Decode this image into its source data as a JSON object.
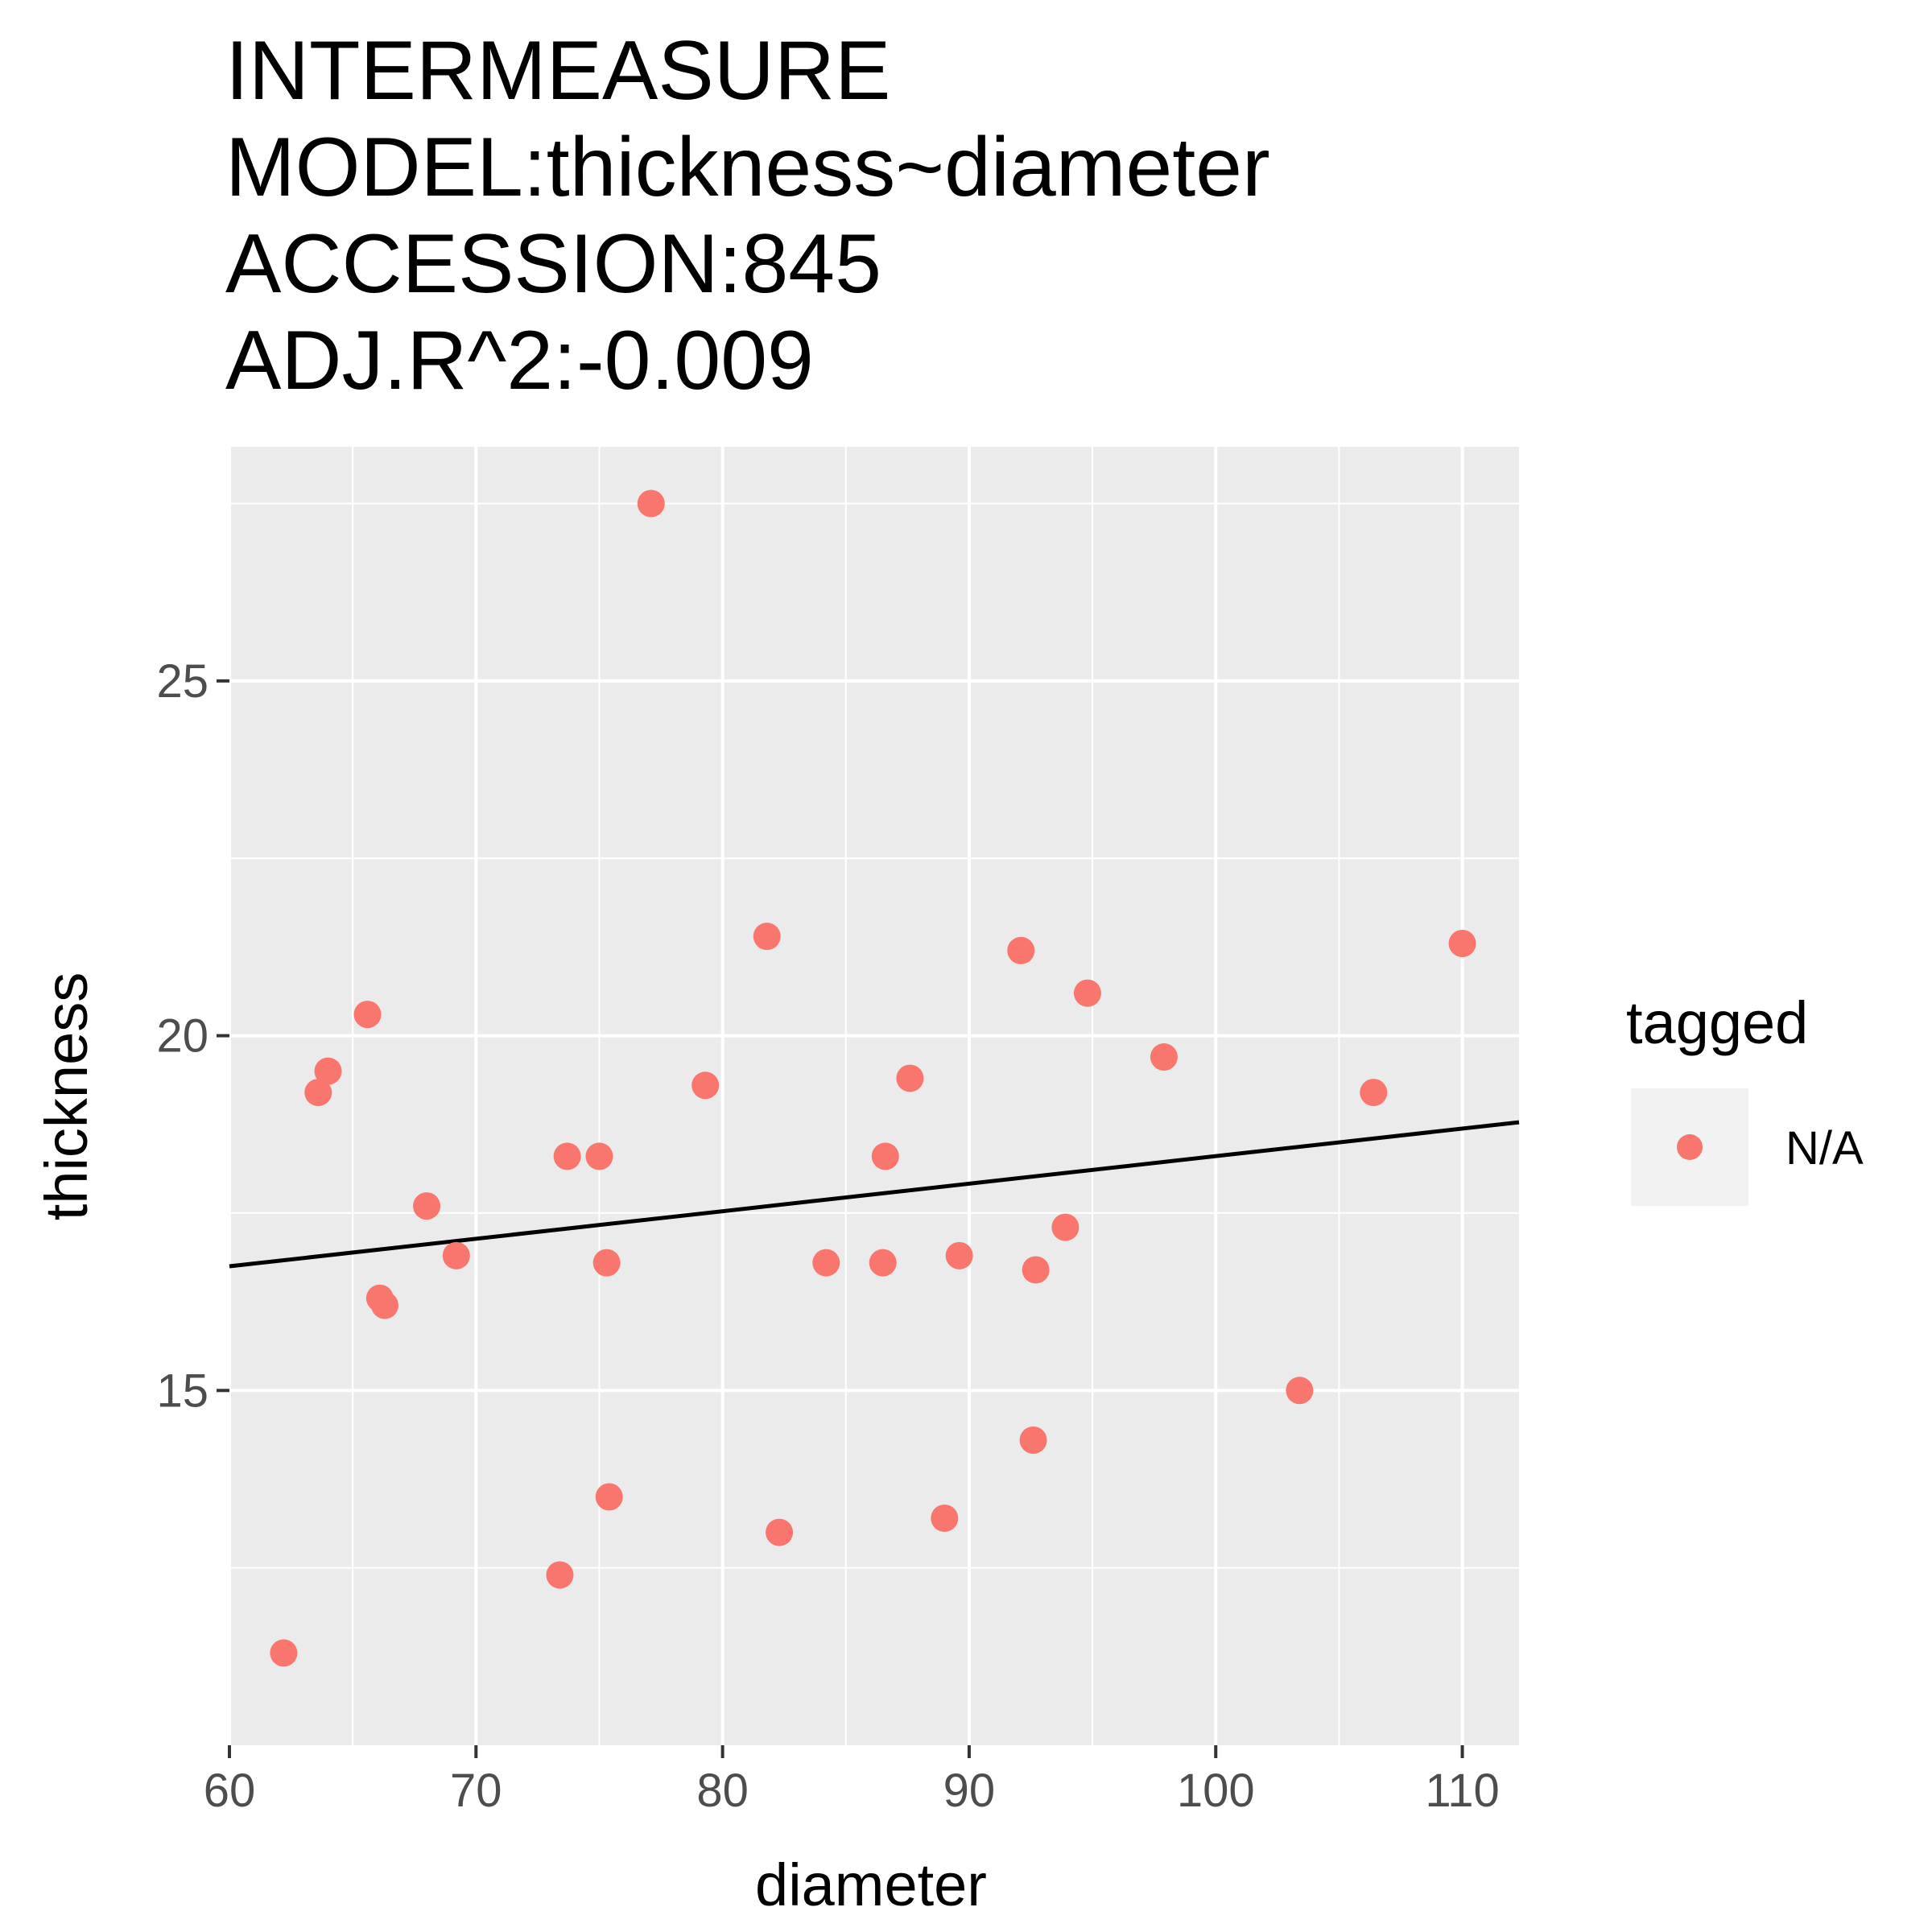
{
  "chart_data": {
    "type": "scatter",
    "title_lines": [
      "INTERMEASURE",
      "MODEL:thickness~diameter",
      "ACCESSION:845",
      "ADJ.R^2:-0.009"
    ],
    "xlabel": "diameter",
    "ylabel": "thickness",
    "xlim": [
      60,
      112.3
    ],
    "ylim": [
      10.0,
      28.3
    ],
    "x_ticks": [
      60,
      70,
      80,
      90,
      100,
      110
    ],
    "y_ticks": [
      15,
      20,
      25
    ],
    "grid": true,
    "legend": {
      "title": "tagged",
      "entries": [
        "N/A"
      ],
      "placement": "right"
    },
    "point_color": "#F8766D",
    "fit_line": {
      "x": [
        60,
        112.3
      ],
      "y": [
        16.75,
        18.78
      ],
      "color": "#000000"
    },
    "series": [
      {
        "name": "N/A",
        "points": [
          [
            62.2,
            11.3
          ],
          [
            63.6,
            19.2
          ],
          [
            64.0,
            19.5
          ],
          [
            65.6,
            20.3
          ],
          [
            66.1,
            16.3
          ],
          [
            66.3,
            16.2
          ],
          [
            68.0,
            17.6
          ],
          [
            69.2,
            16.9
          ],
          [
            73.4,
            12.4
          ],
          [
            73.7,
            18.3
          ],
          [
            75.0,
            18.3
          ],
          [
            75.3,
            16.8
          ],
          [
            75.4,
            13.5
          ],
          [
            77.1,
            27.5
          ],
          [
            79.3,
            19.3
          ],
          [
            81.8,
            21.4
          ],
          [
            82.3,
            13.0
          ],
          [
            84.2,
            16.8
          ],
          [
            86.5,
            16.8
          ],
          [
            86.6,
            18.3
          ],
          [
            87.6,
            19.4
          ],
          [
            89.0,
            13.2
          ],
          [
            89.6,
            16.9
          ],
          [
            92.1,
            21.2
          ],
          [
            92.6,
            14.3
          ],
          [
            92.7,
            16.7
          ],
          [
            93.9,
            17.3
          ],
          [
            94.8,
            20.6
          ],
          [
            97.9,
            19.7
          ],
          [
            103.4,
            15.0
          ],
          [
            106.4,
            19.2
          ],
          [
            110.0,
            21.3
          ]
        ]
      }
    ]
  }
}
